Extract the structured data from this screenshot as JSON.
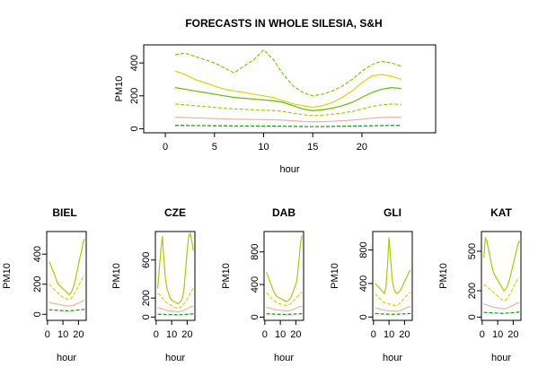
{
  "chart_data": [
    {
      "type": "line",
      "title": "FORECASTS IN WHOLE SILESIA, S&H",
      "xlabel": "hour",
      "ylabel": "PM10",
      "x": [
        1,
        2,
        3,
        4,
        5,
        6,
        7,
        8,
        9,
        10,
        11,
        12,
        13,
        14,
        15,
        16,
        17,
        18,
        19,
        20,
        21,
        22,
        23,
        24
      ],
      "xlim": [
        -2.2,
        27.5
      ],
      "ylim": [
        -25,
        510
      ],
      "xticks": [
        0,
        5,
        10,
        15,
        20
      ],
      "yticks": [
        0,
        200,
        400
      ],
      "series": [
        {
          "color": "#d8d800",
          "values": [
            350,
            330,
            300,
            280,
            260,
            240,
            230,
            220,
            210,
            200,
            190,
            170,
            150,
            140,
            130,
            140,
            160,
            190,
            230,
            280,
            320,
            330,
            320,
            300
          ]
        },
        {
          "color": "#7ccc00",
          "values": [
            450,
            460,
            440,
            420,
            400,
            370,
            340,
            380,
            420,
            480,
            420,
            330,
            260,
            220,
            200,
            210,
            230,
            260,
            300,
            350,
            390,
            410,
            400,
            380
          ]
        },
        {
          "color": "#66bb00",
          "values": [
            250,
            240,
            230,
            220,
            210,
            200,
            190,
            185,
            180,
            175,
            170,
            160,
            140,
            120,
            110,
            115,
            125,
            140,
            160,
            190,
            220,
            240,
            250,
            245
          ]
        },
        {
          "color": "#aacc00",
          "values": [
            150,
            145,
            140,
            135,
            130,
            125,
            120,
            118,
            115,
            112,
            110,
            105,
            95,
            85,
            80,
            82,
            88,
            95,
            105,
            120,
            135,
            145,
            150,
            148
          ]
        },
        {
          "color": "#e8b4a0",
          "values": [
            70,
            68,
            66,
            64,
            62,
            60,
            58,
            57,
            56,
            55,
            54,
            52,
            48,
            44,
            42,
            43,
            45,
            48,
            52,
            58,
            64,
            68,
            70,
            69
          ]
        },
        {
          "color": "#119911",
          "values": [
            20,
            20,
            19,
            19,
            18,
            18,
            17,
            17,
            17,
            16,
            16,
            15,
            14,
            13,
            13,
            13,
            14,
            15,
            16,
            17,
            18,
            19,
            20,
            20
          ]
        }
      ]
    },
    {
      "type": "line",
      "title": "BIEL",
      "xlabel": "hour",
      "ylabel": "PM10",
      "x": [
        1,
        2,
        3,
        4,
        5,
        6,
        7,
        8,
        9,
        10,
        11,
        12,
        13,
        14,
        15,
        16,
        17,
        18,
        19,
        20,
        21,
        22,
        23,
        24
      ],
      "xlim": [
        -0.5,
        25
      ],
      "ylim": [
        -40,
        550
      ],
      "xticks": [
        0,
        10,
        20
      ],
      "yticks": [
        0,
        200,
        400
      ],
      "series": [
        {
          "color": "#aacc00",
          "values": [
            350,
            330,
            300,
            280,
            250,
            220,
            200,
            190,
            180,
            170,
            160,
            150,
            140,
            130,
            140,
            160,
            190,
            230,
            280,
            330,
            380,
            420,
            480,
            500
          ]
        },
        {
          "color": "#d8d800",
          "values": [
            200,
            190,
            180,
            170,
            160,
            150,
            140,
            130,
            120,
            115,
            110,
            105,
            100,
            100,
            105,
            115,
            130,
            150,
            170,
            190,
            210,
            230,
            250,
            260
          ]
        },
        {
          "color": "#e8b4a0",
          "values": [
            80,
            78,
            75,
            72,
            70,
            68,
            66,
            64,
            62,
            60,
            58,
            56,
            55,
            55,
            56,
            58,
            62,
            66,
            70,
            75,
            80,
            85,
            90,
            92
          ]
        },
        {
          "color": "#119911",
          "values": [
            30,
            30,
            29,
            28,
            28,
            27,
            26,
            26,
            25,
            25,
            24,
            24,
            23,
            23,
            24,
            25,
            26,
            27,
            28,
            29,
            30,
            31,
            32,
            32
          ]
        }
      ]
    },
    {
      "type": "line",
      "title": "CZE",
      "xlabel": "hour",
      "ylabel": "PM10",
      "x": [
        1,
        2,
        3,
        4,
        5,
        6,
        7,
        8,
        9,
        10,
        11,
        12,
        13,
        14,
        15,
        16,
        17,
        18,
        19,
        20,
        21,
        22,
        23,
        24
      ],
      "xlim": [
        -0.5,
        25
      ],
      "ylim": [
        -35,
        900
      ],
      "xticks": [
        0,
        10,
        20
      ],
      "yticks": [
        0,
        200,
        600
      ],
      "series": [
        {
          "color": "#aacc00",
          "values": [
            300,
            500,
            700,
            850,
            600,
            400,
            300,
            250,
            200,
            180,
            170,
            160,
            150,
            140,
            150,
            170,
            200,
            300,
            500,
            700,
            850,
            880,
            800,
            700
          ]
        },
        {
          "color": "#d8d800",
          "values": [
            250,
            240,
            220,
            200,
            180,
            160,
            150,
            140,
            130,
            120,
            110,
            100,
            95,
            90,
            95,
            105,
            120,
            140,
            160,
            190,
            220,
            250,
            280,
            300
          ]
        },
        {
          "color": "#e8b4a0",
          "values": [
            100,
            95,
            90,
            85,
            80,
            75,
            70,
            68,
            66,
            64,
            62,
            60,
            58,
            56,
            58,
            62,
            66,
            72,
            80,
            88,
            96,
            104,
            110,
            112
          ]
        },
        {
          "color": "#119911",
          "values": [
            30,
            30,
            29,
            28,
            28,
            27,
            26,
            26,
            25,
            25,
            24,
            24,
            23,
            23,
            24,
            25,
            26,
            27,
            28,
            29,
            30,
            31,
            32,
            32
          ]
        }
      ]
    },
    {
      "type": "line",
      "title": "DAB",
      "xlabel": "hour",
      "ylabel": "PM10",
      "x": [
        1,
        2,
        3,
        4,
        5,
        6,
        7,
        8,
        9,
        10,
        11,
        12,
        13,
        14,
        15,
        16,
        17,
        18,
        19,
        20,
        21,
        22,
        23,
        24
      ],
      "xlim": [
        -0.5,
        25
      ],
      "ylim": [
        -40,
        1050
      ],
      "xticks": [
        0,
        10,
        20
      ],
      "yticks": [
        0,
        400,
        800
      ],
      "series": [
        {
          "color": "#aacc00",
          "values": [
            550,
            500,
            450,
            400,
            350,
            300,
            270,
            250,
            240,
            230,
            220,
            210,
            200,
            190,
            200,
            220,
            250,
            300,
            350,
            400,
            500,
            700,
            900,
            1000
          ]
        },
        {
          "color": "#d8d800",
          "values": [
            300,
            280,
            260,
            240,
            220,
            200,
            185,
            175,
            165,
            160,
            155,
            150,
            145,
            140,
            145,
            155,
            170,
            190,
            210,
            230,
            250,
            270,
            290,
            300
          ]
        },
        {
          "color": "#e8b4a0",
          "values": [
            120,
            115,
            110,
            105,
            100,
            95,
            90,
            88,
            86,
            84,
            82,
            80,
            78,
            76,
            78,
            82,
            86,
            92,
            100,
            108,
            116,
            124,
            130,
            132
          ]
        },
        {
          "color": "#119911",
          "values": [
            40,
            40,
            39,
            38,
            37,
            36,
            35,
            35,
            34,
            34,
            33,
            33,
            32,
            32,
            33,
            34,
            35,
            36,
            37,
            38,
            39,
            40,
            41,
            41
          ]
        }
      ]
    },
    {
      "type": "line",
      "title": "GLI",
      "xlabel": "hour",
      "ylabel": "PM10",
      "x": [
        1,
        2,
        3,
        4,
        5,
        6,
        7,
        8,
        9,
        10,
        11,
        12,
        13,
        14,
        15,
        16,
        17,
        18,
        19,
        20,
        21,
        22,
        23,
        24
      ],
      "xlim": [
        -0.5,
        25
      ],
      "ylim": [
        -40,
        1020
      ],
      "xticks": [
        0,
        10,
        20
      ],
      "yticks": [
        0,
        400,
        800
      ],
      "series": [
        {
          "color": "#aacc00",
          "values": [
            400,
            380,
            360,
            340,
            320,
            300,
            280,
            350,
            600,
            950,
            700,
            450,
            350,
            300,
            280,
            290,
            310,
            340,
            380,
            420,
            460,
            500,
            540,
            560
          ]
        },
        {
          "color": "#d8d800",
          "values": [
            280,
            260,
            240,
            220,
            200,
            185,
            170,
            165,
            160,
            155,
            150,
            145,
            140,
            135,
            140,
            150,
            165,
            185,
            205,
            225,
            245,
            265,
            285,
            295
          ]
        },
        {
          "color": "#e8b4a0",
          "values": [
            110,
            105,
            100,
            95,
            90,
            86,
            82,
            80,
            78,
            76,
            74,
            72,
            70,
            68,
            70,
            74,
            78,
            84,
            92,
            100,
            108,
            116,
            122,
            124
          ]
        },
        {
          "color": "#119911",
          "values": [
            40,
            40,
            39,
            38,
            37,
            36,
            35,
            35,
            34,
            34,
            33,
            33,
            32,
            32,
            33,
            34,
            35,
            36,
            37,
            38,
            39,
            40,
            41,
            41
          ]
        }
      ]
    },
    {
      "type": "line",
      "title": "KAT",
      "xlabel": "hour",
      "ylabel": "PM10",
      "x": [
        1,
        2,
        3,
        4,
        5,
        6,
        7,
        8,
        9,
        10,
        11,
        12,
        13,
        14,
        15,
        16,
        17,
        18,
        19,
        20,
        21,
        22,
        23,
        24
      ],
      "xlim": [
        -0.5,
        25
      ],
      "ylim": [
        -25,
        650
      ],
      "xticks": [
        0,
        10,
        20
      ],
      "yticks": [
        0,
        200,
        500
      ],
      "series": [
        {
          "color": "#aacc00",
          "values": [
            450,
            600,
            580,
            520,
            460,
            400,
            350,
            320,
            300,
            280,
            260,
            240,
            220,
            200,
            210,
            230,
            260,
            300,
            350,
            400,
            450,
            500,
            550,
            580
          ]
        },
        {
          "color": "#d8d800",
          "values": [
            250,
            240,
            230,
            220,
            210,
            200,
            190,
            180,
            170,
            160,
            150,
            140,
            130,
            125,
            130,
            140,
            155,
            175,
            200,
            225,
            250,
            270,
            290,
            300
          ]
        },
        {
          "color": "#e8b4a0",
          "values": [
            100,
            96,
            92,
            88,
            84,
            80,
            76,
            74,
            72,
            70,
            68,
            66,
            64,
            62,
            64,
            68,
            72,
            78,
            84,
            90,
            96,
            102,
            108,
            110
          ]
        },
        {
          "color": "#119911",
          "values": [
            35,
            35,
            34,
            33,
            33,
            32,
            31,
            31,
            30,
            30,
            29,
            29,
            28,
            28,
            29,
            30,
            31,
            32,
            33,
            34,
            35,
            36,
            37,
            37
          ]
        }
      ]
    }
  ]
}
